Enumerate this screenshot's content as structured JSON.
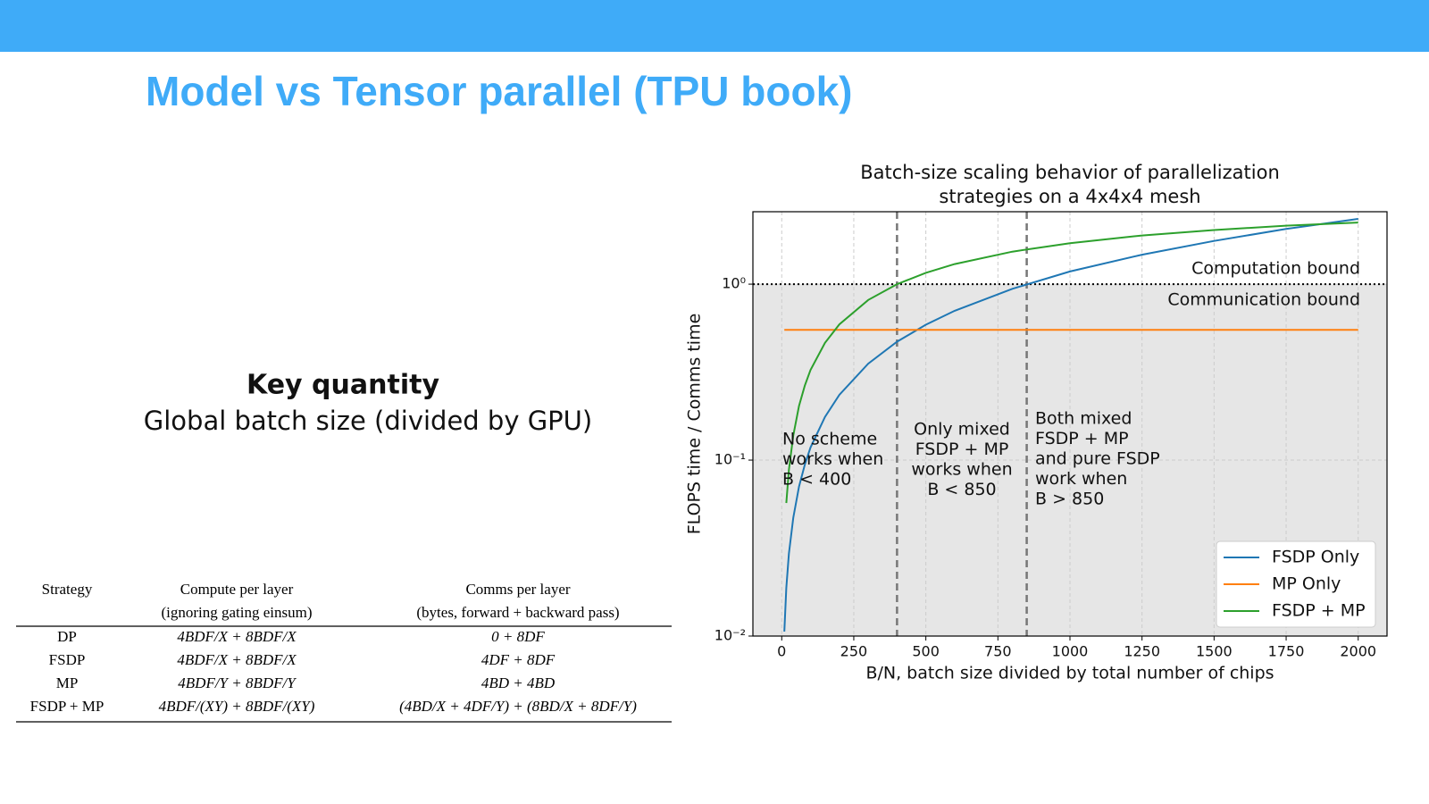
{
  "header": {
    "title": "Model vs Tensor parallel (TPU book)"
  },
  "key": {
    "heading": "Key quantity",
    "text": "Global batch size (divided by GPU)"
  },
  "table": {
    "columns": [
      [
        "Strategy"
      ],
      [
        "Compute per layer",
        "(ignoring gating einsum)"
      ],
      [
        "Comms per layer",
        "(bytes, forward + backward pass)"
      ]
    ],
    "rows": [
      [
        "DP",
        "4BDF/X + 8BDF/X",
        "0 + 8DF"
      ],
      [
        "FSDP",
        "4BDF/X + 8BDF/X",
        "4DF + 8DF"
      ],
      [
        "MP",
        "4BDF/Y + 8BDF/Y",
        "4BD + 4BD"
      ],
      [
        "FSDP + MP",
        "4BDF/(XY) + 8BDF/(XY)",
        "(4BD/X + 4DF/Y) + (8BD/X + 8DF/Y)"
      ]
    ]
  },
  "chart_data": {
    "type": "line",
    "title": [
      "Batch-size scaling behavior of parallelization",
      "strategies on a 4x4x4 mesh"
    ],
    "xlabel": "B/N, batch size divided by total number of chips",
    "ylabel": "FLOPS time / Comms time",
    "log_y": true,
    "grid": true,
    "legend": "lower right",
    "xlim": [
      -100,
      2100
    ],
    "ylim": [
      0.01,
      2.58
    ],
    "xticks": [
      0,
      250,
      500,
      750,
      1000,
      1250,
      1500,
      1750,
      2000
    ],
    "yticks": [
      {
        "value": 0.01,
        "label": "10⁻²"
      },
      {
        "value": 0.1,
        "label": "10⁻¹"
      },
      {
        "value": 1,
        "label": "10⁰"
      }
    ],
    "x": [
      9,
      16,
      25,
      40,
      60,
      80,
      100,
      150,
      200,
      300,
      400,
      500,
      600,
      800,
      1000,
      1250,
      1500,
      1750,
      2000
    ],
    "series": [
      {
        "name": "FSDP Only",
        "color": "#1f77b4",
        "values": [
          0.0106,
          0.0188,
          0.0294,
          0.047,
          0.0706,
          0.094,
          0.118,
          0.176,
          0.235,
          0.353,
          0.471,
          0.588,
          0.706,
          0.941,
          1.18,
          1.47,
          1.76,
          2.06,
          2.35
        ]
      },
      {
        "name": "MP Only",
        "color": "#ff7f0e",
        "values": [
          0.55,
          0.55,
          0.55,
          0.55,
          0.55,
          0.55,
          0.55,
          0.55,
          0.55,
          0.55,
          0.55,
          0.55,
          0.55,
          0.55,
          0.55,
          0.55,
          0.55,
          0.55,
          0.55
        ]
      },
      {
        "name": "FSDP + MP",
        "color": "#2ca02c",
        "values": [
          null,
          0.057,
          0.088,
          0.138,
          0.203,
          0.265,
          0.325,
          0.464,
          0.591,
          0.813,
          1.0,
          1.16,
          1.3,
          1.53,
          1.71,
          1.89,
          2.03,
          2.15,
          2.24
        ]
      }
    ],
    "vlines": [
      400,
      850
    ],
    "hline": 1,
    "region_labels": [
      "Computation bound",
      "Communication bound"
    ],
    "annotations": [
      {
        "lines": [
          "No scheme",
          "works when",
          "B < 400"
        ]
      },
      {
        "lines": [
          "Only mixed",
          "FSDP + MP",
          "works when",
          "B < 850"
        ]
      },
      {
        "lines": [
          "Both mixed",
          "FSDP + MP",
          "and pure FSDP",
          "work when",
          "B > 850"
        ]
      }
    ]
  }
}
